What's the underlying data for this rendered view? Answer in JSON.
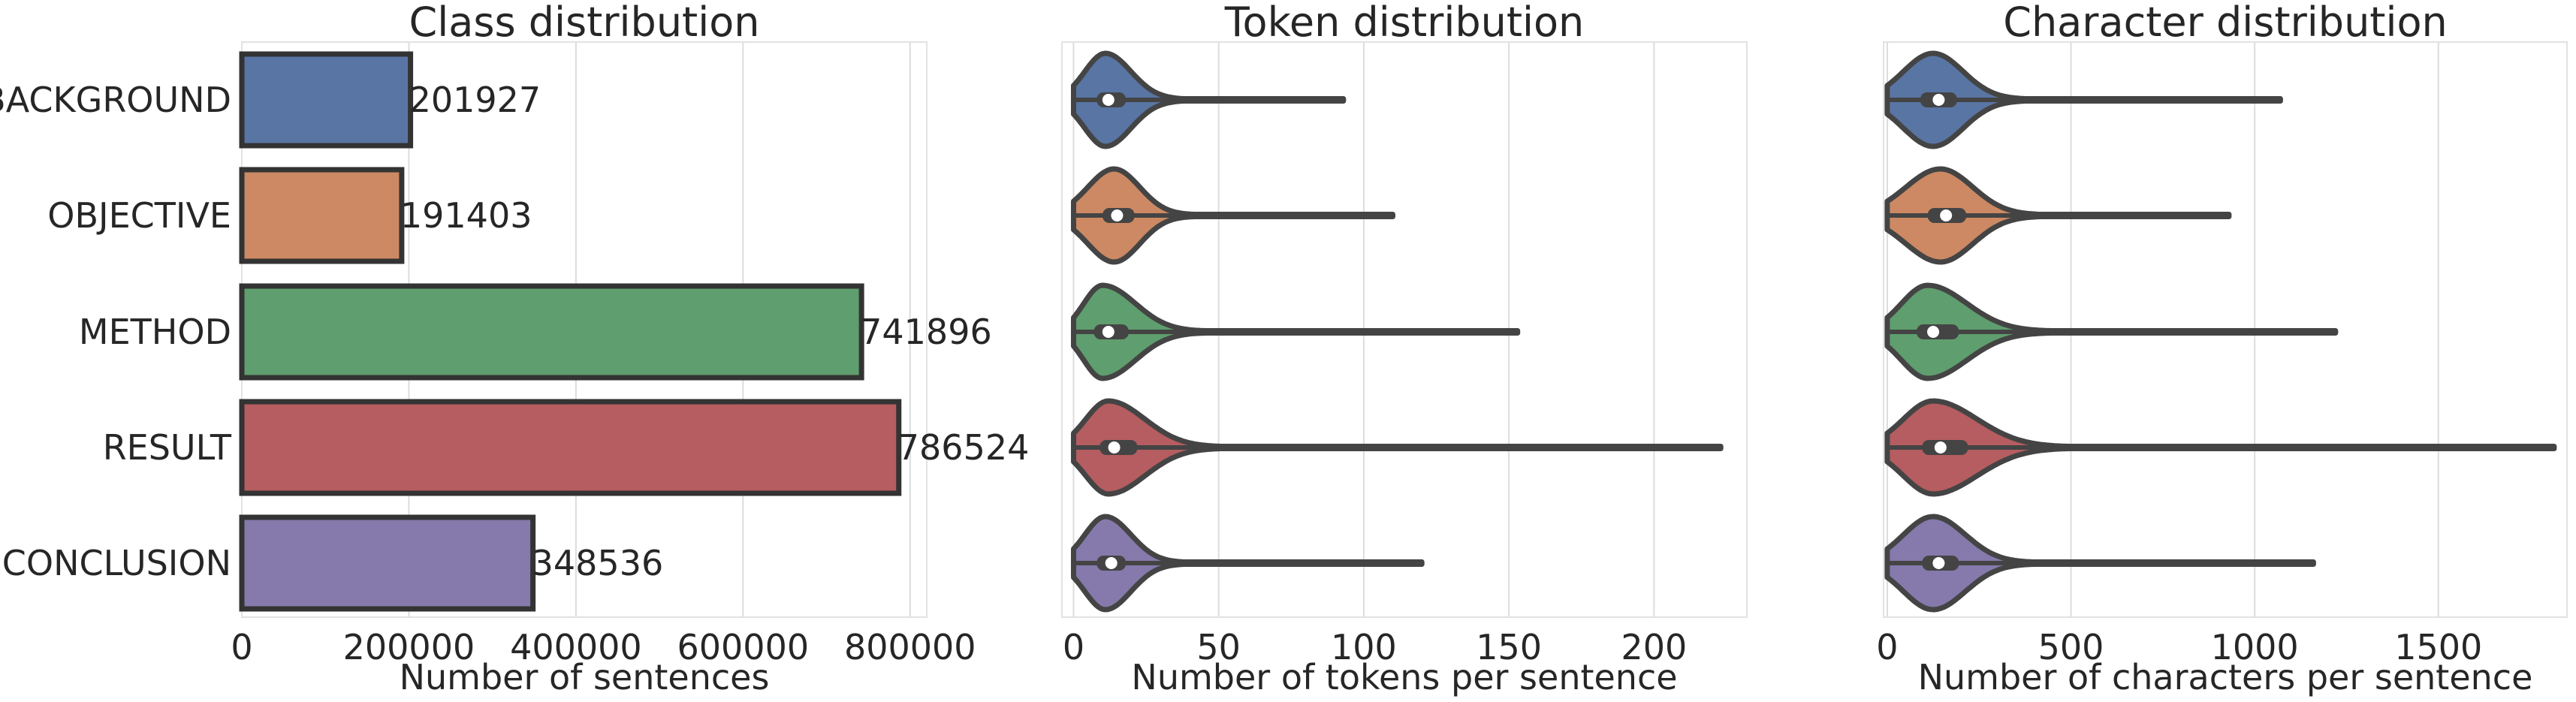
{
  "chart_data": [
    {
      "type": "bar",
      "orientation": "horizontal",
      "title": "Class distribution",
      "xlabel": "Number of sentences",
      "ylabel": "",
      "categories": [
        "BACKGROUND",
        "OBJECTIVE",
        "METHOD",
        "RESULT",
        "CONCLUSION"
      ],
      "values": [
        201927,
        191403,
        741896,
        786524,
        348536
      ],
      "value_labels": [
        "201927",
        "191403",
        "741896",
        "786524",
        "348536"
      ],
      "colors": [
        "#5975a4",
        "#cc8963",
        "#5f9e6e",
        "#b55d60",
        "#857aab"
      ],
      "xlim": [
        0,
        820000
      ],
      "xticks": [
        0,
        200000,
        400000,
        600000,
        800000
      ],
      "xtick_labels": [
        "0",
        "200000",
        "400000",
        "600000",
        "800000"
      ],
      "grid": true
    },
    {
      "type": "violin",
      "orientation": "horizontal",
      "title": "Token distribution",
      "xlabel": "Number of tokens per sentence",
      "ylabel": "",
      "categories": [
        "BACKGROUND",
        "OBJECTIVE",
        "METHOD",
        "RESULT",
        "CONCLUSION"
      ],
      "colors": [
        "#5975a4",
        "#cc8963",
        "#5f9e6e",
        "#b55d60",
        "#857aab"
      ],
      "xlim": [
        -4,
        232
      ],
      "xticks": [
        0,
        50,
        100,
        150,
        200
      ],
      "xtick_labels": [
        "0",
        "50",
        "100",
        "150",
        "200"
      ],
      "grid": true,
      "series": [
        {
          "min": 0,
          "q1": 8,
          "median": 12,
          "q3": 18,
          "max": 93,
          "mode": 11
        },
        {
          "min": 0,
          "q1": 10,
          "median": 15,
          "q3": 21,
          "max": 110,
          "mode": 14
        },
        {
          "min": 0,
          "q1": 7,
          "median": 12,
          "q3": 19,
          "max": 153,
          "mode": 10
        },
        {
          "min": 0,
          "q1": 9,
          "median": 14,
          "q3": 22,
          "max": 223,
          "mode": 12
        },
        {
          "min": 0,
          "q1": 8,
          "median": 13,
          "q3": 18,
          "max": 120,
          "mode": 11
        }
      ]
    },
    {
      "type": "violin",
      "orientation": "horizontal",
      "title": "Character distribution",
      "xlabel": "Number of characters per sentence",
      "ylabel": "",
      "categories": [
        "BACKGROUND",
        "OBJECTIVE",
        "METHOD",
        "RESULT",
        "CONCLUSION"
      ],
      "colors": [
        "#5975a4",
        "#cc8963",
        "#5f9e6e",
        "#b55d60",
        "#857aab"
      ],
      "xlim": [
        -10,
        1850
      ],
      "xticks": [
        0,
        500,
        1000,
        1500
      ],
      "xtick_labels": [
        "0",
        "500",
        "1000",
        "1500"
      ],
      "grid": true,
      "series": [
        {
          "min": 0,
          "q1": 90,
          "median": 140,
          "q3": 190,
          "max": 1070,
          "mode": 125
        },
        {
          "min": 0,
          "q1": 110,
          "median": 160,
          "q3": 215,
          "max": 930,
          "mode": 145
        },
        {
          "min": 0,
          "q1": 80,
          "median": 125,
          "q3": 195,
          "max": 1220,
          "mode": 110
        },
        {
          "min": 0,
          "q1": 95,
          "median": 145,
          "q3": 220,
          "max": 1815,
          "mode": 125
        },
        {
          "min": 0,
          "q1": 95,
          "median": 140,
          "q3": 195,
          "max": 1160,
          "mode": 125
        }
      ]
    }
  ]
}
